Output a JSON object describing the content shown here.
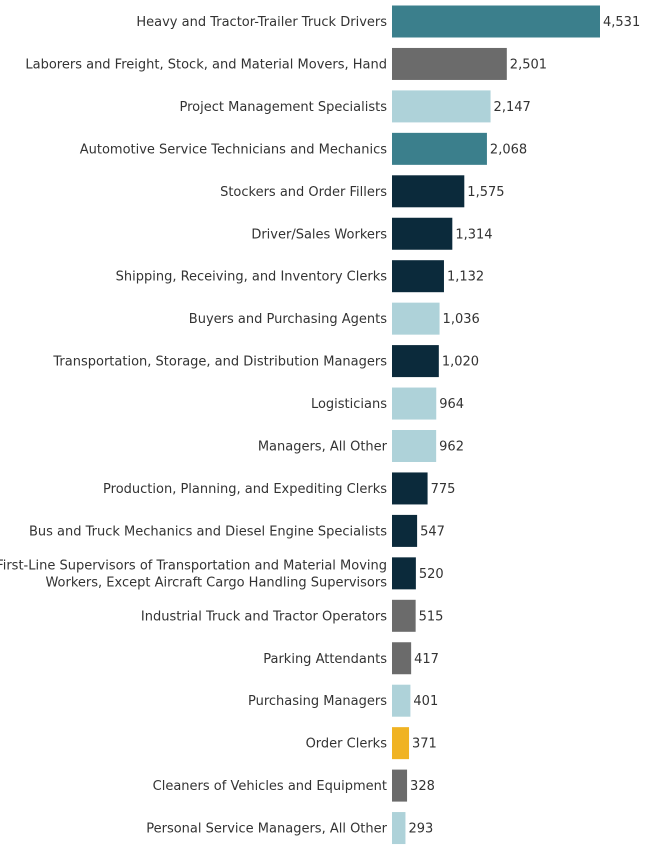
{
  "chart_data": {
    "type": "bar",
    "orientation": "horizontal",
    "categories": [
      [
        "Heavy and Tractor-Trailer Truck Drivers"
      ],
      [
        "Laborers and Freight, Stock, and Material Movers, Hand"
      ],
      [
        "Project Management Specialists"
      ],
      [
        "Automotive Service Technicians and Mechanics"
      ],
      [
        "Stockers and Order Fillers"
      ],
      [
        "Driver/Sales Workers"
      ],
      [
        "Shipping, Receiving, and Inventory Clerks"
      ],
      [
        "Buyers and Purchasing Agents"
      ],
      [
        "Transportation, Storage, and Distribution Managers"
      ],
      [
        "Logisticians"
      ],
      [
        "Managers, All Other"
      ],
      [
        "Production, Planning, and Expediting Clerks"
      ],
      [
        "Bus and Truck Mechanics and Diesel Engine Specialists"
      ],
      [
        "First-Line Supervisors of Transportation and Material Moving",
        "Workers, Except Aircraft Cargo Handling Supervisors"
      ],
      [
        "Industrial Truck and Tractor Operators"
      ],
      [
        "Parking Attendants"
      ],
      [
        "Purchasing Managers"
      ],
      [
        "Order Clerks"
      ],
      [
        "Cleaners of Vehicles and Equipment"
      ],
      [
        "Personal Service Managers, All Other"
      ]
    ],
    "values": [
      4531,
      2501,
      2147,
      2068,
      1575,
      1314,
      1132,
      1036,
      1020,
      964,
      962,
      775,
      547,
      520,
      515,
      417,
      401,
      371,
      328,
      293
    ],
    "value_labels": [
      "4,531",
      "2,501",
      "2,147",
      "2,068",
      "1,575",
      "1,314",
      "1,132",
      "1,036",
      "1,020",
      "964",
      "962",
      "775",
      "547",
      "520",
      "515",
      "417",
      "401",
      "371",
      "328",
      "293"
    ],
    "colors": [
      "#3b7f8c",
      "#6b6b6b",
      "#aed2d9",
      "#3b7f8c",
      "#0b2a3b",
      "#0b2a3b",
      "#0b2a3b",
      "#aed2d9",
      "#0b2a3b",
      "#aed2d9",
      "#aed2d9",
      "#0b2a3b",
      "#0b2a3b",
      "#0b2a3b",
      "#6b6b6b",
      "#6b6b6b",
      "#aed2d9",
      "#f0b323",
      "#6b6b6b",
      "#aed2d9"
    ],
    "xlim": [
      0,
      4531
    ],
    "title": "",
    "xlabel": "",
    "ylabel": ""
  }
}
